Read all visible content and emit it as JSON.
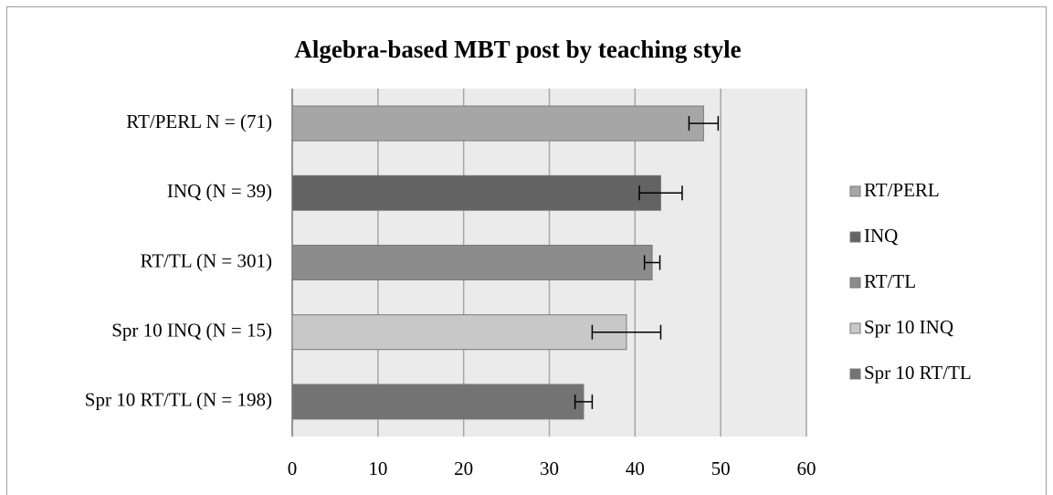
{
  "chart_data": {
    "type": "bar",
    "orientation": "horizontal",
    "title": "Algebra-based MBT post by teaching style",
    "categories": [
      "RT/PERL N = (71)",
      "INQ (N = 39)",
      "RT/TL (N = 301)",
      "Spr 10 INQ (N = 15)",
      "Spr 10 RT/TL (N = 198)"
    ],
    "series": [
      {
        "name": "RT/PERL",
        "color": "#a6a6a6",
        "values": [
          48,
          null,
          null,
          null,
          null
        ],
        "errors": [
          1.7,
          null,
          null,
          null,
          null
        ]
      },
      {
        "name": "INQ",
        "color": "#636363",
        "values": [
          null,
          43,
          null,
          null,
          null
        ],
        "errors": [
          null,
          2.5,
          null,
          null,
          null
        ]
      },
      {
        "name": "RT/TL",
        "color": "#8c8c8c",
        "values": [
          null,
          null,
          42,
          null,
          null
        ],
        "errors": [
          null,
          null,
          0.9,
          null,
          null
        ]
      },
      {
        "name": "Spr 10 INQ",
        "color": "#c8c8c8",
        "values": [
          null,
          null,
          null,
          39,
          null
        ],
        "errors": [
          null,
          null,
          null,
          4,
          null
        ]
      },
      {
        "name": "Spr 10 RT/TL",
        "color": "#737373",
        "values": [
          null,
          null,
          null,
          null,
          34
        ],
        "errors": [
          null,
          null,
          null,
          null,
          1
        ]
      }
    ],
    "xlim": [
      0,
      60
    ],
    "xticks": [
      0,
      10,
      20,
      30,
      40,
      50,
      60
    ],
    "grid": true,
    "legend": "right"
  }
}
